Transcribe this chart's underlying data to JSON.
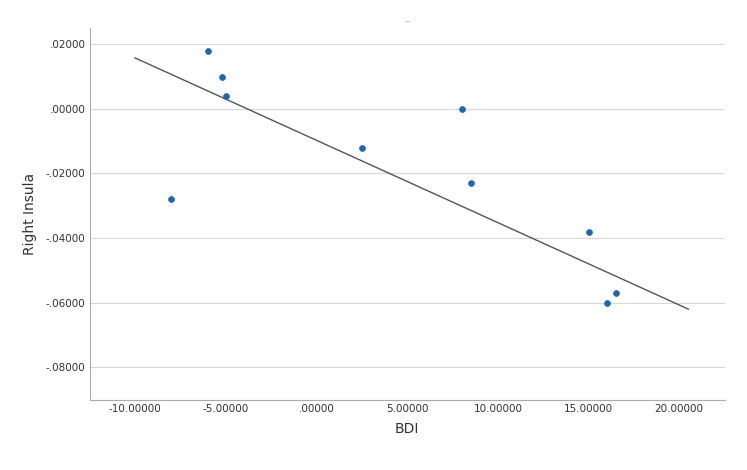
{
  "scatter_x": [
    -8.0,
    -6.0,
    -5.2,
    -5.0,
    2.5,
    8.0,
    8.5,
    15.0,
    16.5,
    16.0
  ],
  "scatter_y": [
    -0.028,
    0.018,
    0.01,
    0.004,
    -0.012,
    0.0001,
    -0.023,
    -0.038,
    -0.057,
    -0.06
  ],
  "line_x": [
    -10.0,
    20.5
  ],
  "line_y": [
    0.0158,
    -0.062
  ],
  "xlabel": "BDI",
  "ylabel": "Right Insula",
  "xlim": [
    -12.5,
    22.5
  ],
  "ylim": [
    -0.09,
    0.025
  ],
  "xticks": [
    -10.0,
    -5.0,
    0.0,
    5.0,
    10.0,
    15.0,
    20.0
  ],
  "yticks": [
    -0.08,
    -0.06,
    -0.04,
    -0.02,
    0.0,
    0.02
  ],
  "dot_color": "#2166ac",
  "line_color": "#555555",
  "grid_color": "#d8d8d8",
  "background_color": "#ffffff",
  "title": "–",
  "dot_size": 18,
  "linewidth": 1.0,
  "tick_fontsize": 7.5,
  "label_fontsize": 10
}
